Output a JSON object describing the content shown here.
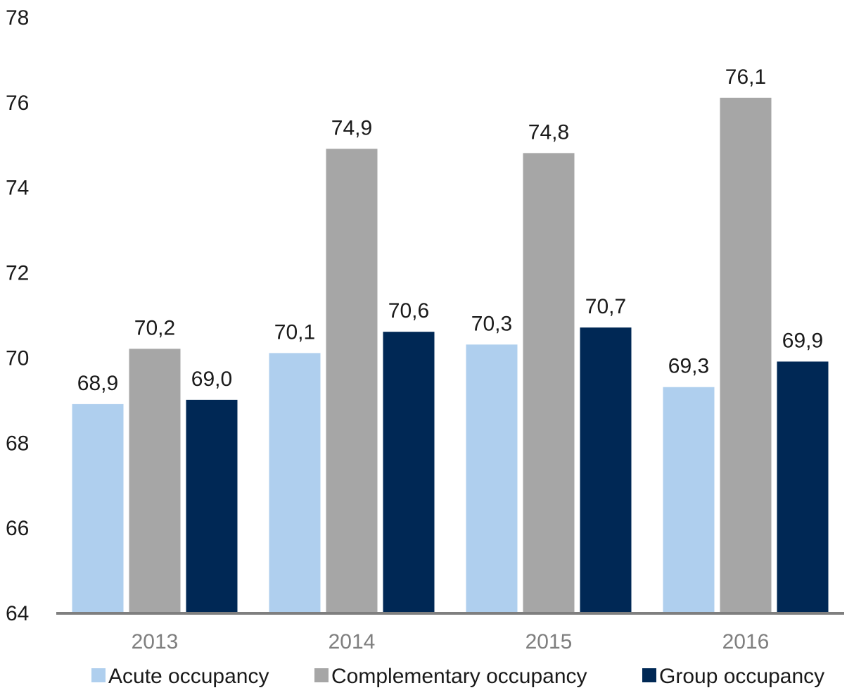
{
  "chart_data": {
    "type": "bar",
    "categories": [
      "2013",
      "2014",
      "2015",
      "2016"
    ],
    "series": [
      {
        "name": "Acute occupancy",
        "color": "#afcfee",
        "values": [
          68.9,
          70.1,
          70.3,
          69.3
        ],
        "labels": [
          "68,9",
          "70,1",
          "70,3",
          "69,3"
        ]
      },
      {
        "name": "Complementary occupancy",
        "color": "#a6a6a6",
        "values": [
          70.2,
          74.9,
          74.8,
          76.1
        ],
        "labels": [
          "70,2",
          "74,9",
          "74,8",
          "76,1"
        ]
      },
      {
        "name": "Group occupancy",
        "color": "#002855",
        "values": [
          69.0,
          70.6,
          70.7,
          69.9
        ],
        "labels": [
          "69,0",
          "70,6",
          "70,7",
          "69,9"
        ]
      }
    ],
    "ylim": [
      64,
      78
    ],
    "yticks": [
      "64",
      "66",
      "68",
      "70",
      "72",
      "74",
      "76",
      "78"
    ],
    "grid": false,
    "legend_position": "bottom",
    "axis_color": "#7f7f7f"
  }
}
